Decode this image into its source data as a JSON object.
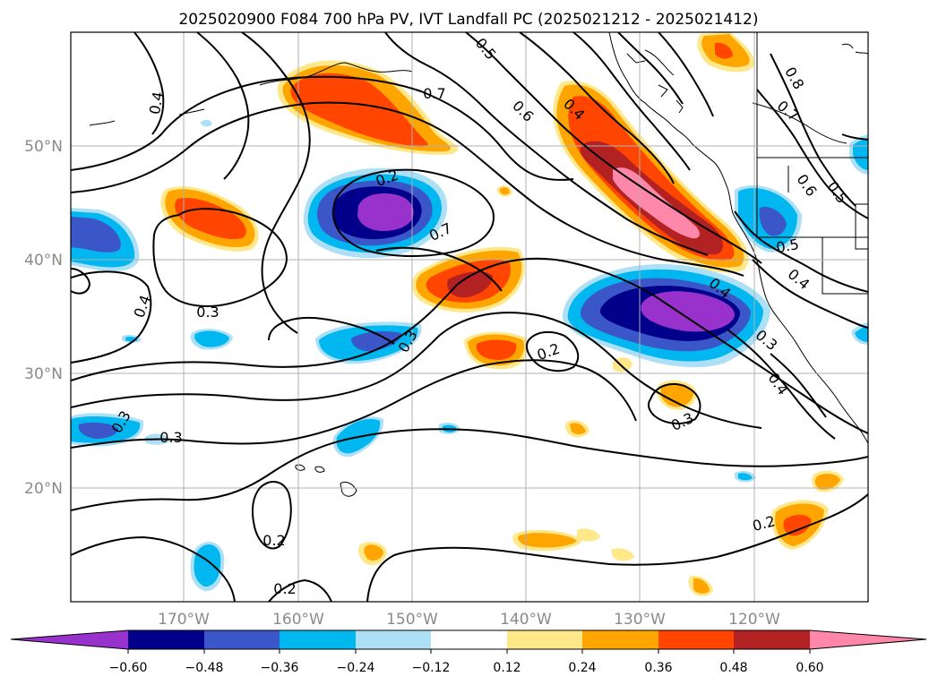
{
  "figure": {
    "title": "2025020900 F084 700 hPa PV, IVT Landfall PC (2025021212 - 2025021412)"
  },
  "map": {
    "longitude_labels": [
      "170°W",
      "160°W",
      "150°W",
      "140°W",
      "130°W",
      "120°W"
    ],
    "latitude_labels": [
      "50°N",
      "40°N",
      "30°N",
      "20°N"
    ],
    "contour_labels": [
      "0.7",
      "0.5",
      "0.4",
      "0.6",
      "0.4",
      "0.8",
      "0.7",
      "0.6",
      "0.5",
      "0.7",
      "0.5",
      "0.4",
      "0.3",
      "0.4",
      "0.3",
      "0.2",
      "0.3",
      "0.4",
      "0.3",
      "0.3",
      "0.3",
      "0.2",
      "0.2",
      "0.2",
      "0.2",
      "0.4"
    ]
  },
  "colorbar": {
    "tick_labels": [
      "−0.60",
      "−0.48",
      "−0.36",
      "−0.24",
      "−0.12",
      "0.12",
      "0.24",
      "0.36",
      "0.48",
      "0.60"
    ],
    "colors": [
      "#9932cc",
      "#00008b",
      "#3a56c9",
      "#00b7f0",
      "#ade0f7",
      "#ffffff",
      "#ffe88a",
      "#ffa500",
      "#ff4500",
      "#b22222",
      "#ff88aa"
    ]
  }
}
